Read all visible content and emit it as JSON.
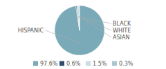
{
  "chart_data": {
    "type": "pie",
    "categories": [
      "HISPANIC",
      "BLACK",
      "WHITE",
      "ASIAN"
    ],
    "values": [
      97.6,
      0.6,
      1.5,
      0.3
    ],
    "value_labels": [
      "97.6%",
      "0.6%",
      "1.5%",
      "0.3%"
    ],
    "colors": [
      "#7aaab8",
      "#2e4d6b",
      "#c9dde6",
      "#aac6d0"
    ],
    "legend": "bottom"
  }
}
